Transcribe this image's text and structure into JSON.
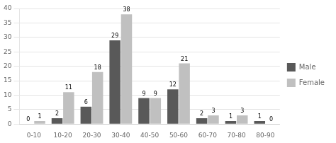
{
  "chart_data": {
    "type": "bar",
    "categories": [
      "0-10",
      "10-20",
      "20-30",
      "30-40",
      "40-50",
      "50-60",
      "60-70",
      "70-80",
      "80-90"
    ],
    "series": [
      {
        "name": "Male",
        "color": "#595959",
        "values": [
          0,
          2,
          6,
          29,
          9,
          12,
          2,
          1,
          1
        ]
      },
      {
        "name": "Female",
        "color": "#c0c0c0",
        "values": [
          1,
          11,
          18,
          38,
          9,
          21,
          3,
          3,
          0
        ]
      }
    ],
    "ylim": [
      0,
      40
    ],
    "yticks": [
      0,
      5,
      10,
      15,
      20,
      25,
      30,
      35,
      40
    ],
    "grid": true,
    "legend": "right",
    "data_labels": true
  }
}
